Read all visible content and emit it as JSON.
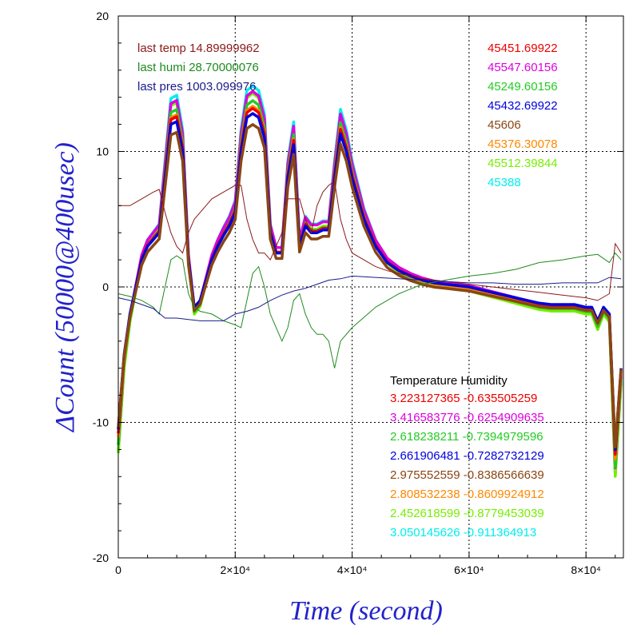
{
  "chart_data": {
    "type": "line",
    "xlabel": "Time (second)",
    "ylabel": "ΔCount (50000@400usec)",
    "xlim": [
      0,
      86400
    ],
    "ylim": [
      -20,
      20
    ],
    "grid": true,
    "xticks": [
      {
        "value": 0,
        "label": "0"
      },
      {
        "value": 20000,
        "label": "2×10⁴"
      },
      {
        "value": 40000,
        "label": "4×10⁴"
      },
      {
        "value": 60000,
        "label": "6×10⁴"
      },
      {
        "value": 80000,
        "label": "8×10⁴"
      }
    ],
    "yticks": [
      {
        "value": 20,
        "label": "20"
      },
      {
        "value": 10,
        "label": "10"
      },
      {
        "value": 0,
        "label": "0"
      },
      {
        "value": -10,
        "label": "-10"
      },
      {
        "value": -20,
        "label": "-20"
      }
    ],
    "environment_labels": [
      {
        "text": "last temp 14.89999962",
        "color": "#8b1a1a"
      },
      {
        "text": "last humi 28.70000076",
        "color": "#1f8a1f"
      },
      {
        "text": "last pres 1003.099976",
        "color": "#1a1a8b"
      }
    ],
    "count_labels": [
      {
        "text": "45451.69922",
        "color": "#ee0000"
      },
      {
        "text": "45547.60156",
        "color": "#dd00dd"
      },
      {
        "text": "45249.60156",
        "color": "#22cc22"
      },
      {
        "text": "45432.69922",
        "color": "#0000dd"
      },
      {
        "text": "45606",
        "color": "#8b4513"
      },
      {
        "text": "45376.30078",
        "color": "#ff8800"
      },
      {
        "text": "45512.39844",
        "color": "#77ee00"
      },
      {
        "text": "45388",
        "color": "#00eeee"
      }
    ],
    "coef_header": "Temperature    Humidity",
    "coef_labels": [
      {
        "text": "3.223127365 -0.635505259",
        "color": "#ee0000"
      },
      {
        "text": "3.416583776 -0.6254909635",
        "color": "#dd00dd"
      },
      {
        "text": "2.618238211 -0.7394979596",
        "color": "#22cc22"
      },
      {
        "text": "2.661906481 -0.7282732129",
        "color": "#0000dd"
      },
      {
        "text": "2.975552559 -0.8386566639",
        "color": "#8b4513"
      },
      {
        "text": "2.808532238 -0.8609924912",
        "color": "#ff8800"
      },
      {
        "text": "2.452618599 -0.8779453039",
        "color": "#77ee00"
      },
      {
        "text": "3.050145626 -0.911364913",
        "color": "#00eeee"
      }
    ],
    "series": [
      {
        "color": "#00eeee",
        "scale": 1.16,
        "offset": 0.0
      },
      {
        "color": "#77ee00",
        "scale": 1.14,
        "offset": -0.3
      },
      {
        "color": "#dd00dd",
        "scale": 1.12,
        "offset": 0.1
      },
      {
        "color": "#22cc22",
        "scale": 1.09,
        "offset": -0.2
      },
      {
        "color": "#ff8800",
        "scale": 1.05,
        "offset": -0.1
      },
      {
        "color": "#ee0000",
        "scale": 1.03,
        "offset": 0.0
      },
      {
        "color": "#0000dd",
        "scale": 1.0,
        "offset": 0.0
      },
      {
        "color": "#8b4513",
        "scale": 0.96,
        "offset": -0.3
      }
    ],
    "base_curve": {
      "x": [
        0,
        1000,
        2000,
        3000,
        4000,
        5000,
        6000,
        7000,
        8000,
        9000,
        10000,
        11000,
        12000,
        13000,
        14000,
        15000,
        16000,
        17000,
        18000,
        19000,
        20000,
        21000,
        22000,
        23000,
        24000,
        25000,
        26000,
        27000,
        28000,
        29000,
        30000,
        31000,
        32000,
        33000,
        34000,
        35000,
        36000,
        37000,
        38000,
        39000,
        40000,
        42000,
        44000,
        46000,
        48000,
        50000,
        52000,
        54000,
        56000,
        58000,
        60000,
        62000,
        64000,
        66000,
        68000,
        70000,
        72000,
        74000,
        76000,
        78000,
        80000,
        81000,
        82000,
        83000,
        84000,
        85000,
        86000
      ],
      "y": [
        -10.5,
        -5,
        -2,
        0,
        2,
        3,
        3.5,
        4,
        8,
        12,
        12.2,
        10,
        2,
        -1.5,
        -1,
        0.5,
        2,
        3,
        3.8,
        4.5,
        5.5,
        10,
        12.5,
        12.8,
        12.5,
        11,
        4,
        2.5,
        2.5,
        8,
        10.5,
        3,
        4.5,
        4,
        4,
        4.2,
        4.2,
        8,
        11.3,
        10,
        8,
        5,
        3,
        1.8,
        1.2,
        0.8,
        0.5,
        0.3,
        0.2,
        0.1,
        0,
        -0.2,
        -0.4,
        -0.6,
        -0.8,
        -1,
        -1.2,
        -1.3,
        -1.3,
        -1.3,
        -1.5,
        -1.5,
        -2.5,
        -1.5,
        -2,
        -12,
        -6
      ]
    },
    "temp_curve": {
      "x": [
        0,
        2000,
        4000,
        6000,
        7000,
        8000,
        9000,
        10000,
        11000,
        12000,
        13000,
        14000,
        16000,
        18000,
        20000,
        21000,
        22000,
        23000,
        24000,
        25000,
        26000,
        27000,
        28000,
        28500,
        29000,
        30000,
        31000,
        32000,
        33000,
        34000,
        35000,
        36000,
        37000,
        38000,
        39000,
        40000,
        42000,
        44000,
        46000,
        48000,
        50000,
        52000,
        54000,
        56000,
        58000,
        60000,
        64000,
        68000,
        72000,
        76000,
        80000,
        82000,
        84000,
        85000,
        86000
      ],
      "y": [
        6,
        6,
        6.5,
        7,
        7.2,
        5.5,
        4,
        3,
        2.5,
        4,
        5,
        5.5,
        6.5,
        7,
        7.5,
        7.5,
        5,
        3.5,
        2.5,
        2.5,
        2,
        3,
        4,
        6,
        6.5,
        6.5,
        6.5,
        5,
        4,
        6,
        7,
        7.5,
        7.8,
        5,
        3.5,
        2.5,
        2,
        1.5,
        1.2,
        1,
        0.8,
        0.6,
        0.5,
        0.4,
        0.3,
        0.2,
        0,
        -0.2,
        -0.4,
        -0.6,
        -0.8,
        -1,
        -0.5,
        3.2,
        2.5
      ]
    },
    "humi_curve": {
      "x": [
        0,
        2000,
        4000,
        6000,
        7000,
        8000,
        9000,
        10000,
        11000,
        12000,
        13000,
        14000,
        16000,
        18000,
        20000,
        21000,
        22000,
        23000,
        24000,
        25000,
        26000,
        27000,
        28000,
        29000,
        30000,
        31000,
        32000,
        33000,
        34000,
        35000,
        36000,
        37000,
        38000,
        40000,
        44000,
        48000,
        52000,
        56000,
        60000,
        64000,
        68000,
        72000,
        76000,
        80000,
        82000,
        84000,
        85000,
        86000
      ],
      "y": [
        -0.5,
        -0.7,
        -1,
        -1.5,
        -2,
        0,
        2,
        2.3,
        2,
        -0.5,
        -1.5,
        -1.8,
        -2,
        -2.5,
        -2.8,
        -3,
        -1,
        1,
        1.5,
        0,
        -2,
        -3,
        -4,
        -3,
        -1,
        -0.5,
        -2,
        -3,
        -3.5,
        -3.5,
        -4,
        -6,
        -4,
        -3,
        -1.5,
        -0.5,
        0.2,
        0.5,
        0.8,
        1,
        1.3,
        1.8,
        2,
        2.3,
        2.4,
        1.8,
        2.5,
        2.0
      ]
    },
    "pres_curve": {
      "x": [
        0,
        2000,
        4000,
        6000,
        8000,
        10000,
        12000,
        14000,
        16000,
        18000,
        20000,
        22000,
        24000,
        26000,
        28000,
        30000,
        32000,
        34000,
        36000,
        38000,
        40000,
        44000,
        48000,
        52000,
        56000,
        60000,
        64000,
        68000,
        72000,
        76000,
        80000,
        82000,
        84000,
        86000
      ],
      "y": [
        -0.8,
        -1,
        -1.3,
        -1.6,
        -2.3,
        -2.3,
        -2.4,
        -2.5,
        -2.5,
        -2.5,
        -2,
        -1.8,
        -1.5,
        -1,
        -0.6,
        -0.3,
        -0.1,
        0.2,
        0.5,
        0.6,
        0.8,
        0.7,
        0.6,
        0.5,
        0.4,
        0.3,
        0.3,
        0.2,
        0.2,
        0.3,
        0.3,
        0.3,
        0.7,
        0.6
      ]
    }
  }
}
